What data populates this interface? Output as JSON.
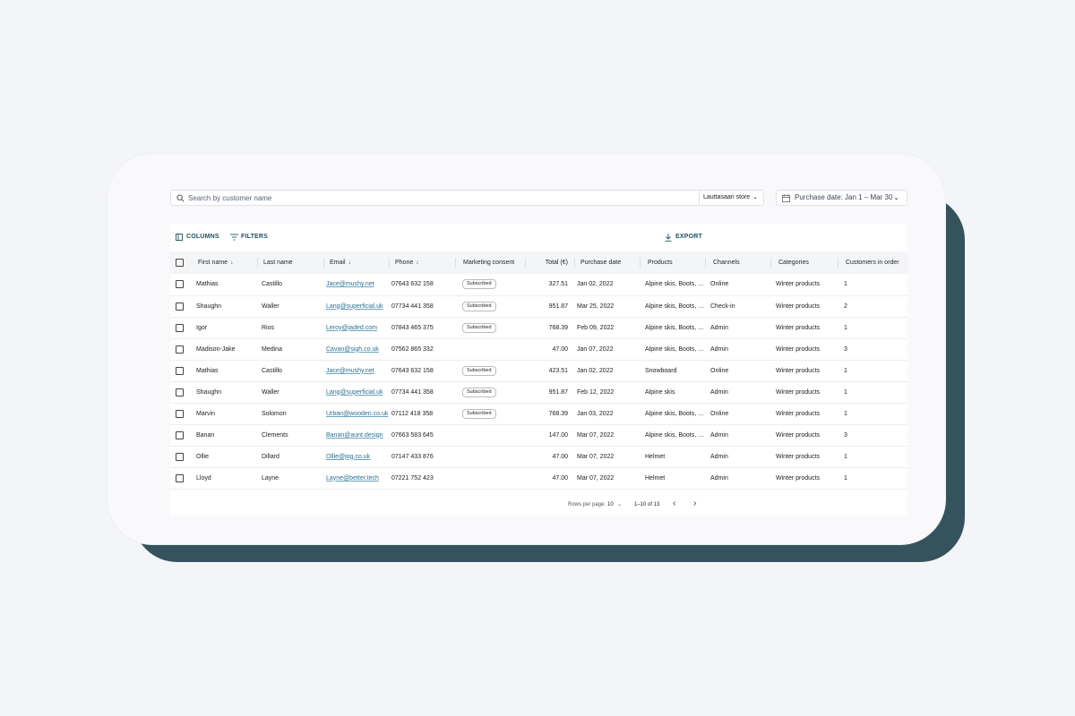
{
  "search": {
    "placeholder": "Search by customer name"
  },
  "store_select": {
    "value": "Lauttasaari store"
  },
  "date_filter": {
    "label": "Purchase date: Jan 1 – Mar 30"
  },
  "toolbar": {
    "columns_label": "COLUMNS",
    "filters_label": "FILTERS",
    "export_label": "EXPORT"
  },
  "columns": {
    "first_name": "First name",
    "last_name": "Last name",
    "email": "Email",
    "phone": "Phone",
    "marketing": "Marketing consent",
    "total": "Total (€)",
    "purchase_date": "Purchase date",
    "products": "Products",
    "channels": "Channels",
    "categories": "Categories",
    "customers": "Customers in order"
  },
  "rows": [
    {
      "first": "Mathias",
      "last": "Castillo",
      "email": "Jace@mushy.net",
      "phone": "07643 632 158",
      "consent": "Subscribed",
      "total": "327.51",
      "date": "Jan 02, 2022",
      "products": "Alpine skis, Boots, He...",
      "channel": "Online",
      "category": "Winter products",
      "customers": "1"
    },
    {
      "first": "Shaughn",
      "last": "Waller",
      "email": "Lang@superficial.uk",
      "phone": "07734 441 358",
      "consent": "Subscribed",
      "total": "951.87",
      "date": "Mar 25, 2022",
      "products": "Alpine skis, Boots, He...",
      "channel": "Check-in",
      "category": "Winter products",
      "customers": "2"
    },
    {
      "first": "Igor",
      "last": "Rios",
      "email": "Leroy@jaded.com",
      "phone": "07843 465 375",
      "consent": "Subscribed",
      "total": "768.39",
      "date": "Feb 09, 2022",
      "products": "Alpine skis, Boots, He...",
      "channel": "Admin",
      "category": "Winter products",
      "customers": "1"
    },
    {
      "first": "Madison-Jake",
      "last": "Medina",
      "email": "Cavan@sigh.co.uk",
      "phone": "07562 865 332",
      "consent": "",
      "total": "47.00",
      "date": "Jan 07, 2022",
      "products": "Alpine skis, Boots, He...",
      "channel": "Admin",
      "category": "Winter products",
      "customers": "3"
    },
    {
      "first": "Mathias",
      "last": "Castillo",
      "email": "Jace@mushy.net",
      "phone": "07643 632 158",
      "consent": "Subscribed",
      "total": "423.51",
      "date": "Jan 02, 2022",
      "products": "Snowboard",
      "channel": "Online",
      "category": "Winter products",
      "customers": "1"
    },
    {
      "first": "Shaughn",
      "last": "Waller",
      "email": "Lang@superficial.uk",
      "phone": "07734 441 358",
      "consent": "Subscribed",
      "total": "951.87",
      "date": "Feb 12, 2022",
      "products": "Alpine skis",
      "channel": "Admin",
      "category": "Winter products",
      "customers": "1"
    },
    {
      "first": "Marvin",
      "last": "Solomon",
      "email": "Urban@wooden.co.uk",
      "phone": "07112 418 358",
      "consent": "Subscribed",
      "total": "768.39",
      "date": "Jan 03, 2022",
      "products": "Alpine skis, Boots, He...",
      "channel": "Online",
      "category": "Winter products",
      "customers": "1"
    },
    {
      "first": "Banan",
      "last": "Clements",
      "email": "Banan@aunt.design",
      "phone": "07663 583 645",
      "consent": "",
      "total": "147.00",
      "date": "Mar 07, 2022",
      "products": "Alpine skis, Boots, He...",
      "channel": "Admin",
      "category": "Winter products",
      "customers": "3"
    },
    {
      "first": "Ollie",
      "last": "Dillard",
      "email": "Ollie@jog.co.uk",
      "phone": "07147 433 876",
      "consent": "",
      "total": "47.00",
      "date": "Mar 07, 2022",
      "products": "Helmet",
      "channel": "Admin",
      "category": "Winter products",
      "customers": "1"
    },
    {
      "first": "Lloyd",
      "last": "Layne",
      "email": "Layne@better.tech",
      "phone": "07221 752 423",
      "consent": "",
      "total": "47.00",
      "date": "Mar 07, 2022",
      "products": "Helmet",
      "channel": "Admin",
      "category": "Winter products",
      "customers": "1"
    }
  ],
  "pagination": {
    "rows_per_page_label": "Rows per page:",
    "rows_per_page": "10",
    "range": "1–10 of 13"
  },
  "icons": {
    "search": "search-icon",
    "calendar": "calendar-icon",
    "columns": "columns-icon",
    "filters": "filter-icon",
    "export": "download-icon",
    "sort": "arrow-down-icon"
  }
}
